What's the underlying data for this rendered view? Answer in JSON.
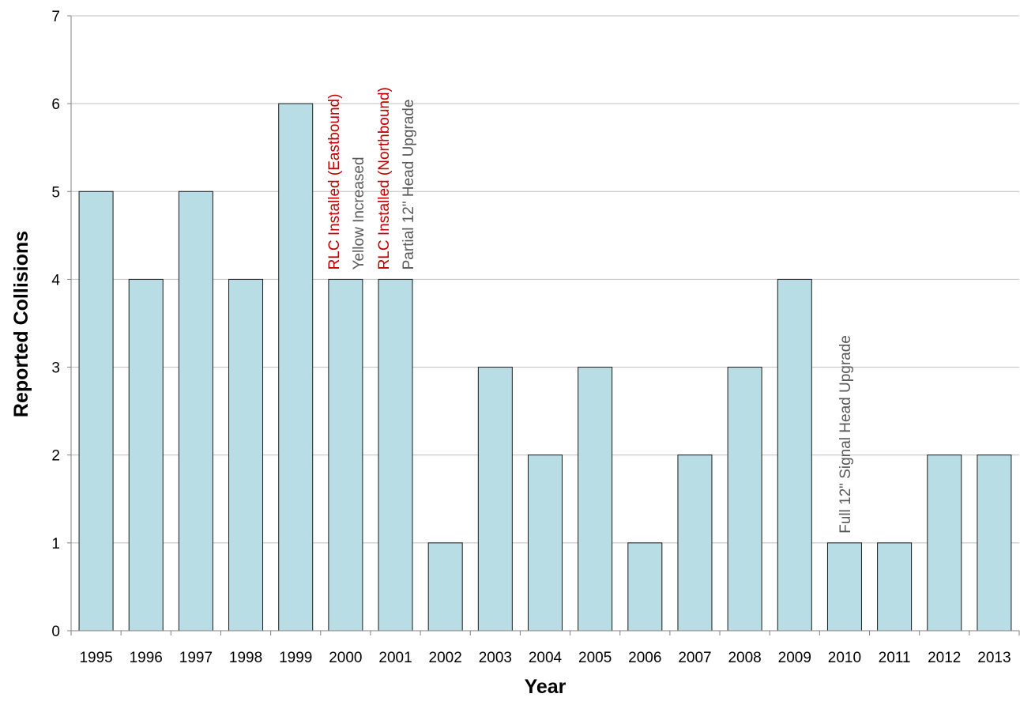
{
  "chart_data": {
    "type": "bar",
    "title": "",
    "xlabel": "Year",
    "ylabel": "Reported Collisions",
    "categories": [
      "1995",
      "1996",
      "1997",
      "1998",
      "1999",
      "2000",
      "2001",
      "2002",
      "2003",
      "2004",
      "2005",
      "2006",
      "2007",
      "2008",
      "2009",
      "2010",
      "2011",
      "2012",
      "2013"
    ],
    "values": [
      5,
      4,
      5,
      4,
      6,
      4,
      4,
      1,
      3,
      2,
      3,
      1,
      2,
      3,
      4,
      1,
      1,
      2,
      2
    ],
    "ylim": [
      0,
      7
    ],
    "yticks": [
      "0",
      "1",
      "2",
      "3",
      "4",
      "5",
      "6",
      "7"
    ],
    "grid": "horizontal",
    "bar_color": "#b9dde5",
    "bar_edge_color": "#1a1a1a",
    "annotations": [
      {
        "text": "RLC Installed (Eastbound)",
        "category": "2000",
        "color": "#c00000",
        "orientation": "vertical"
      },
      {
        "text": "Yellow Increased",
        "category": "2000",
        "color": "#595959",
        "orientation": "vertical"
      },
      {
        "text": "RLC Installed (Northbound)",
        "category": "2001",
        "color": "#c00000",
        "orientation": "vertical"
      },
      {
        "text": "Partial 12\" Head Upgrade",
        "category": "2001",
        "color": "#595959",
        "orientation": "vertical"
      },
      {
        "text": "Full 12\" Signal Head Upgrade",
        "category": "2010",
        "color": "#595959",
        "orientation": "vertical"
      }
    ]
  }
}
